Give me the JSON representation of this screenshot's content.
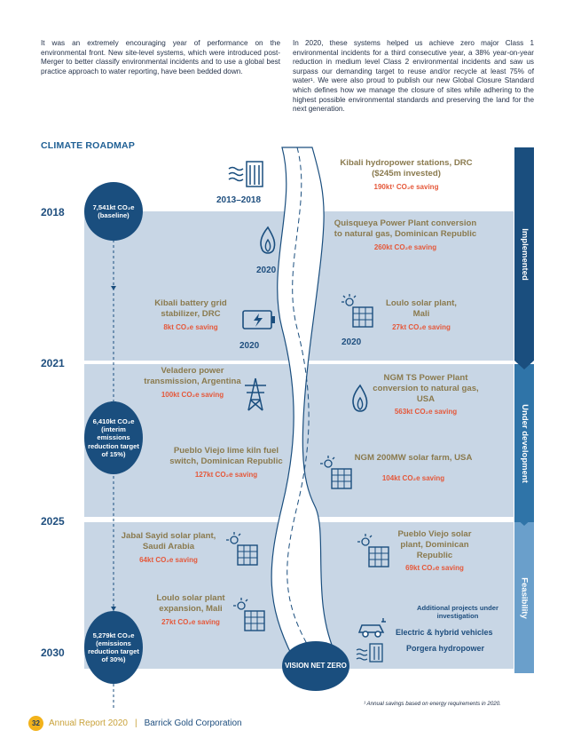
{
  "intro": {
    "left": "It was an extremely encouraging year of performance on the environmental front. New site-level systems, which were introduced post-Merger to better classify environmental incidents and to use a global best practice approach to water reporting, have been bedded down.",
    "right": "In 2020, these systems helped us achieve zero major Class 1 environmental incidents for a third consecutive year, a 38% year-on-year reduction in medium level Class 2 environmental incidents and saw us surpass our demanding target to reuse and/or recycle at least 75% of water¹. We were also proud to publish our new Global Closure Standard which defines how we manage the closure of sites while adhering to the highest possible environmental standards and preserving the land for the next generation."
  },
  "section_title": "CLIMATE ROADMAP",
  "stages": [
    "Implemented",
    "Under development",
    "Feasibility"
  ],
  "years": [
    "2018",
    "2021",
    "2025",
    "2030"
  ],
  "circles": [
    {
      "text": "7,541kt CO₂e (baseline)"
    },
    {
      "text": "6,410kt CO₂e (interim emissions reduction target of 15%)"
    },
    {
      "text": "5,279kt CO₂e (emissions reduction target of 30%)"
    }
  ],
  "projects": [
    {
      "name": "Kibali hydropower stations, DRC ($245m invested)",
      "saving": "190kt¹ CO₂e saving",
      "year": "2013–2018",
      "icon": "hydro-icon"
    },
    {
      "name": "Quisqueya Power Plant conversion to natural gas, Dominican Republic",
      "saving": "260kt CO₂e saving",
      "year": "2020",
      "icon": "flame-icon"
    },
    {
      "name": "Kibali battery grid stabilizer, DRC",
      "saving": "8kt CO₂e saving",
      "year": "2020",
      "icon": "battery-icon"
    },
    {
      "name": "Loulo solar plant, Mali",
      "saving": "27kt CO₂e saving",
      "year": "2020",
      "icon": "solar-icon"
    },
    {
      "name": "Veladero power transmission, Argentina",
      "saving": "100kt CO₂e saving",
      "icon": "pylon-icon"
    },
    {
      "name": "NGM TS Power Plant conversion to natural gas, USA",
      "saving": "563kt CO₂e saving",
      "icon": "flame-icon"
    },
    {
      "name": "Pueblo Viejo lime kiln fuel switch, Dominican Republic",
      "saving": "127kt CO₂e saving"
    },
    {
      "name": "NGM 200MW solar farm, USA",
      "saving": "104kt CO₂e saving",
      "icon": "solar-icon"
    },
    {
      "name": "Jabal Sayid solar plant, Saudi Arabia",
      "saving": "64kt CO₂e saving",
      "icon": "solar-icon"
    },
    {
      "name": "Pueblo Viejo solar plant, Dominican Republic",
      "saving": "69kt CO₂e saving",
      "icon": "solar-icon"
    },
    {
      "name": "Loulo solar plant expansion, Mali",
      "saving": "27kt CO₂e saving",
      "icon": "solar-icon"
    }
  ],
  "additional": {
    "title": "Additional projects under investigation",
    "items": [
      "Electric & hybrid vehicles",
      "Porgera hydropower"
    ]
  },
  "vision": "VISION NET ZERO",
  "footnote": "¹ Annual savings based on energy requirements in 2020.",
  "footer": {
    "page": "32",
    "report": "Annual Report 2020",
    "separator": "|",
    "company": "Barrick Gold Corporation"
  },
  "colors": {
    "navy": "#1a4e7e",
    "band": "#c8d6e5",
    "olive": "#8a7a4e",
    "saving": "#e5583a",
    "gold": "#f2b21b"
  }
}
